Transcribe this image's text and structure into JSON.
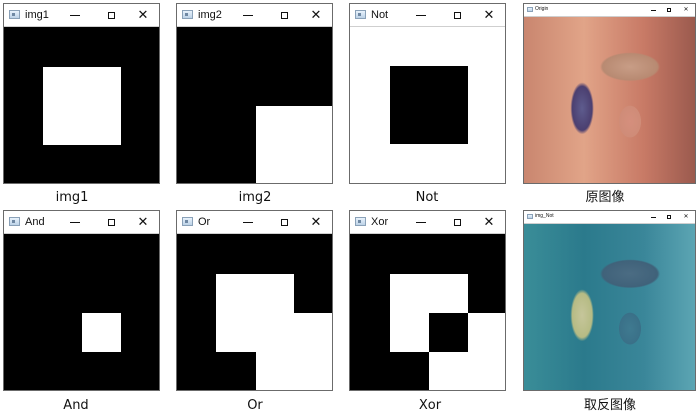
{
  "windows": [
    {
      "id": "img1",
      "title": "img1",
      "caption": "img1"
    },
    {
      "id": "img2",
      "title": "img2",
      "caption": "img2"
    },
    {
      "id": "not",
      "title": "Not",
      "caption": "Not"
    },
    {
      "id": "origin",
      "title": "Origin",
      "caption": "原图像"
    },
    {
      "id": "and",
      "title": "And",
      "caption": "And"
    },
    {
      "id": "or",
      "title": "Or",
      "caption": "Or"
    },
    {
      "id": "xor",
      "title": "Xor",
      "caption": "Xor"
    },
    {
      "id": "imgnot",
      "title": "img_Not",
      "caption": "取反图像"
    }
  ],
  "controls": {
    "minimize": "minimize-icon",
    "maximize": "maximize-icon",
    "close": "close-icon",
    "close_glyph": "✕"
  },
  "colors": {
    "black": "#000000",
    "white": "#ffffff"
  }
}
